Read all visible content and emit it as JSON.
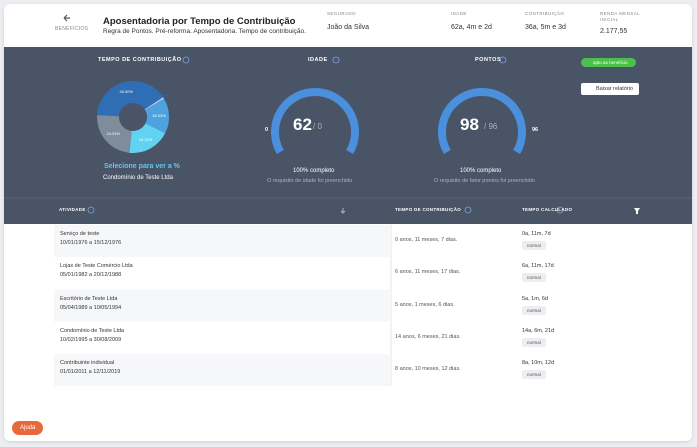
{
  "header": {
    "back_label": "BENEFÍCIOS",
    "title": "Aposentadoria por Tempo de Contribuição",
    "subtitle": "Regra de Pontos. Pré-reforma. Aposentadoria. Tempo de contribuição.",
    "fields": [
      {
        "label": "SEGURADO",
        "value": "João da Silva"
      },
      {
        "label": "IDADE",
        "value": "62a, 4m e 2d"
      },
      {
        "label": "CONTRIBUIÇÃO",
        "value": "36a, 5m e 3d"
      },
      {
        "label": "RENDA MENSAL INICIAL",
        "value": "2.177,55"
      }
    ]
  },
  "summary": {
    "donut": {
      "title": "TEMPO DE CONTRIBUIÇÃO",
      "values": [
        40.0,
        0.31,
        0.3,
        16.03,
        19.12,
        24.24
      ],
      "value_labels": [
        "40.00%",
        "0.31%",
        "0.30%",
        "16.03%",
        "19.12%",
        "24.24%"
      ],
      "colors": [
        "#2f6db5",
        "#eef4fb",
        "#cfe1f4",
        "#4da2e0",
        "#62d2f2",
        "#7e8c9c"
      ],
      "cta": "Selecione para ver a %",
      "company": "Condomínio de Teste Ltda"
    },
    "gauges": [
      {
        "title": "IDADE",
        "value": "62",
        "target": "/ 0",
        "end_label": "0",
        "status": "100% completo",
        "note": "O requisito de idade foi preenchido"
      },
      {
        "title": "PONTOS",
        "value": "98",
        "target": "/ 96",
        "end_label": "96",
        "status": "100% completo",
        "note": "O requisito de fator pontos foi preenchido"
      }
    ],
    "badge": "apto ao benefício",
    "button": "Baixar relatório"
  },
  "table": {
    "headers": [
      "ATIVIDADE",
      "TEMPO DE CONTRIBUIÇÃO",
      "TEMPO CALCULADO"
    ],
    "rows": [
      {
        "name": "Serviço de teste",
        "period": "10/01/1976 a 15/12/1976",
        "duration": "0 anos, 11 meses, 7 dias.",
        "calc": "0a, 11m, 7d",
        "tag": "normal"
      },
      {
        "name": "Lojas de Teste Comércio Ltda",
        "period": "05/01/1982 a 20/12/1988",
        "duration": "6 anos, 11 meses, 17 dias.",
        "calc": "6a, 11m, 17d",
        "tag": "normal"
      },
      {
        "name": "Escritório de Teste Ltda",
        "period": "05/04/1989 a 10/05/1994",
        "duration": "5 anos, 1 meses, 6 dias.",
        "calc": "5a, 1m, 6d",
        "tag": "normal"
      },
      {
        "name": "Condomínio de Teste Ltda",
        "period": "10/02/1995 a 30/08/2009",
        "duration": "14 anos, 6 meses, 21 dias.",
        "calc": "14a, 6m, 21d",
        "tag": "normal"
      },
      {
        "name": "Contribuinte individual",
        "period": "01/01/2011 a 12/11/2019",
        "duration": "8 anos, 10 meses, 12 dias.",
        "calc": "8a, 10m, 12d",
        "tag": "normal"
      }
    ]
  },
  "help": "Ajuda"
}
